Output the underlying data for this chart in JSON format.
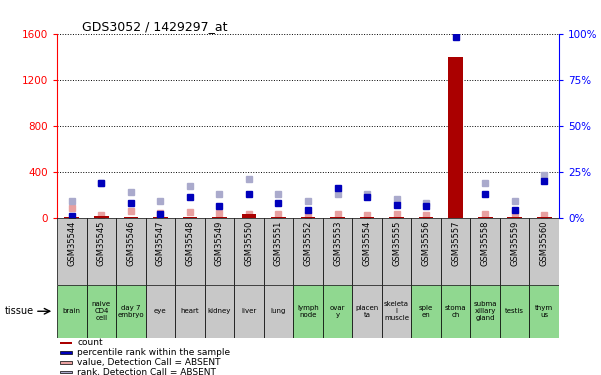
{
  "title": "GDS3052 / 1429297_at",
  "samples": [
    "GSM35544",
    "GSM35545",
    "GSM35546",
    "GSM35547",
    "GSM35548",
    "GSM35549",
    "GSM35550",
    "GSM35551",
    "GSM35552",
    "GSM35553",
    "GSM35554",
    "GSM35555",
    "GSM35556",
    "GSM35557",
    "GSM35558",
    "GSM35559",
    "GSM35560"
  ],
  "tissues": [
    "brain",
    "naive\nCD4\ncell",
    "day 7\nembryo",
    "eye",
    "heart",
    "kidney",
    "liver",
    "lung",
    "lymph\nnode",
    "ovar\ny",
    "placen\nta",
    "skeleta\nl\nmuscle",
    "sple\nen",
    "stoma\nch",
    "subma\nxillary\ngland",
    "testis",
    "thym\nus"
  ],
  "green_tissues": [
    1,
    1,
    1,
    0,
    0,
    0,
    0,
    0,
    1,
    1,
    0,
    0,
    1,
    1,
    1,
    1,
    1
  ],
  "count_values": [
    5,
    10,
    5,
    5,
    5,
    5,
    30,
    5,
    5,
    5,
    5,
    5,
    5,
    1400,
    5,
    5,
    5
  ],
  "rank_pct": [
    1,
    19,
    8,
    2,
    11,
    6,
    13,
    8,
    4,
    16,
    11,
    7,
    6,
    98,
    13,
    4,
    20
  ],
  "absent_value": [
    80,
    20,
    60,
    40,
    50,
    40,
    30,
    30,
    20,
    30,
    20,
    30,
    20,
    0,
    30,
    40,
    20
  ],
  "absent_rank_pct": [
    9,
    19,
    14,
    9,
    17,
    13,
    21,
    13,
    9,
    13,
    13,
    10,
    8,
    0,
    19,
    9,
    23
  ],
  "left_ylim": [
    0,
    1600
  ],
  "left_yticks": [
    0,
    400,
    800,
    1200,
    1600
  ],
  "right_ylim": [
    0,
    100
  ],
  "right_yticks": [
    0,
    25,
    50,
    75,
    100
  ],
  "bar_color": "#aa0000",
  "rank_color": "#0000bb",
  "absent_value_color": "#e8a0a0",
  "absent_rank_color": "#aaaacc",
  "gray_bg": "#c8c8c8",
  "green_bg": "#90d890",
  "white_bg": "#ffffff",
  "axis_bg": "#ffffff"
}
